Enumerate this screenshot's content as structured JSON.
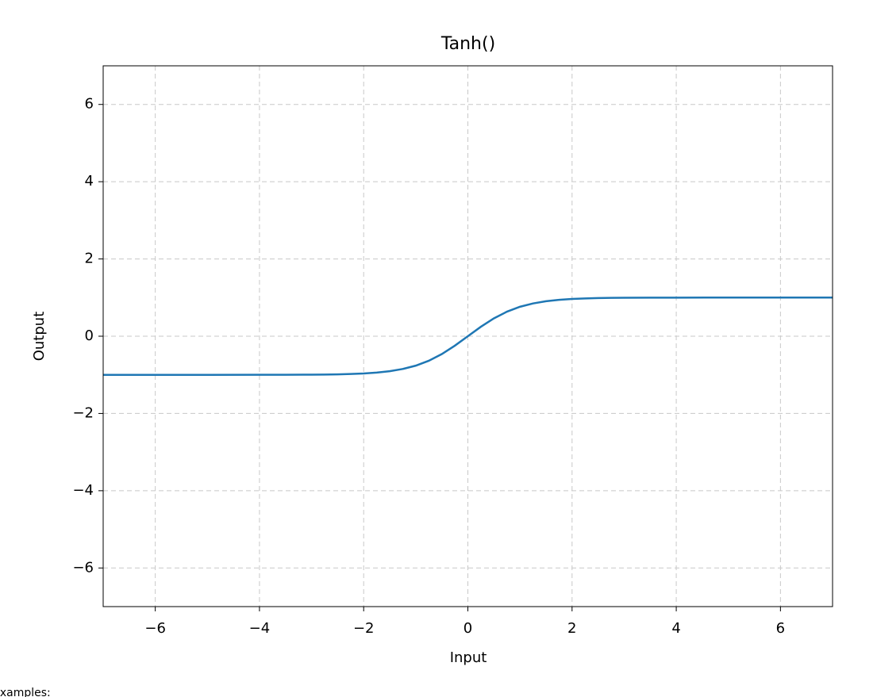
{
  "chart_data": {
    "type": "line",
    "title": "Tanh()",
    "x_label": "Input",
    "y_label": "Output",
    "x": [
      -7,
      -6,
      -5,
      -4,
      -3.5,
      -3,
      -2.75,
      -2.5,
      -2.25,
      -2,
      -1.75,
      -1.5,
      -1.25,
      -1,
      -0.75,
      -0.5,
      -0.25,
      0,
      0.25,
      0.5,
      0.75,
      1,
      1.25,
      1.5,
      1.75,
      2,
      2.25,
      2.5,
      2.75,
      3,
      3.5,
      4,
      5,
      6,
      7
    ],
    "series": [
      {
        "color": "#1f77b4",
        "values": [
          -1,
          -1,
          -1,
          -0.999,
          -0.998,
          -0.995,
          -0.992,
          -0.987,
          -0.978,
          -0.964,
          -0.941,
          -0.905,
          -0.848,
          -0.762,
          -0.635,
          -0.462,
          -0.245,
          0,
          0.245,
          0.462,
          0.635,
          0.762,
          0.848,
          0.905,
          0.941,
          0.964,
          0.978,
          0.987,
          0.992,
          0.995,
          0.998,
          0.999,
          1,
          1,
          1
        ]
      }
    ],
    "xlim": [
      -7,
      7
    ],
    "ylim": [
      -7,
      7
    ],
    "xticks": [
      {
        "value": -6,
        "label": "−6"
      },
      {
        "value": -4,
        "label": "−4"
      },
      {
        "value": -2,
        "label": "−2"
      },
      0,
      2,
      4,
      6
    ],
    "yticks": [
      {
        "value": -6,
        "label": "−6"
      },
      {
        "value": -4,
        "label": "−4"
      },
      {
        "value": -2,
        "label": "−2"
      },
      0,
      2,
      4,
      6
    ],
    "grid": true
  },
  "footer_text": "Examples:"
}
